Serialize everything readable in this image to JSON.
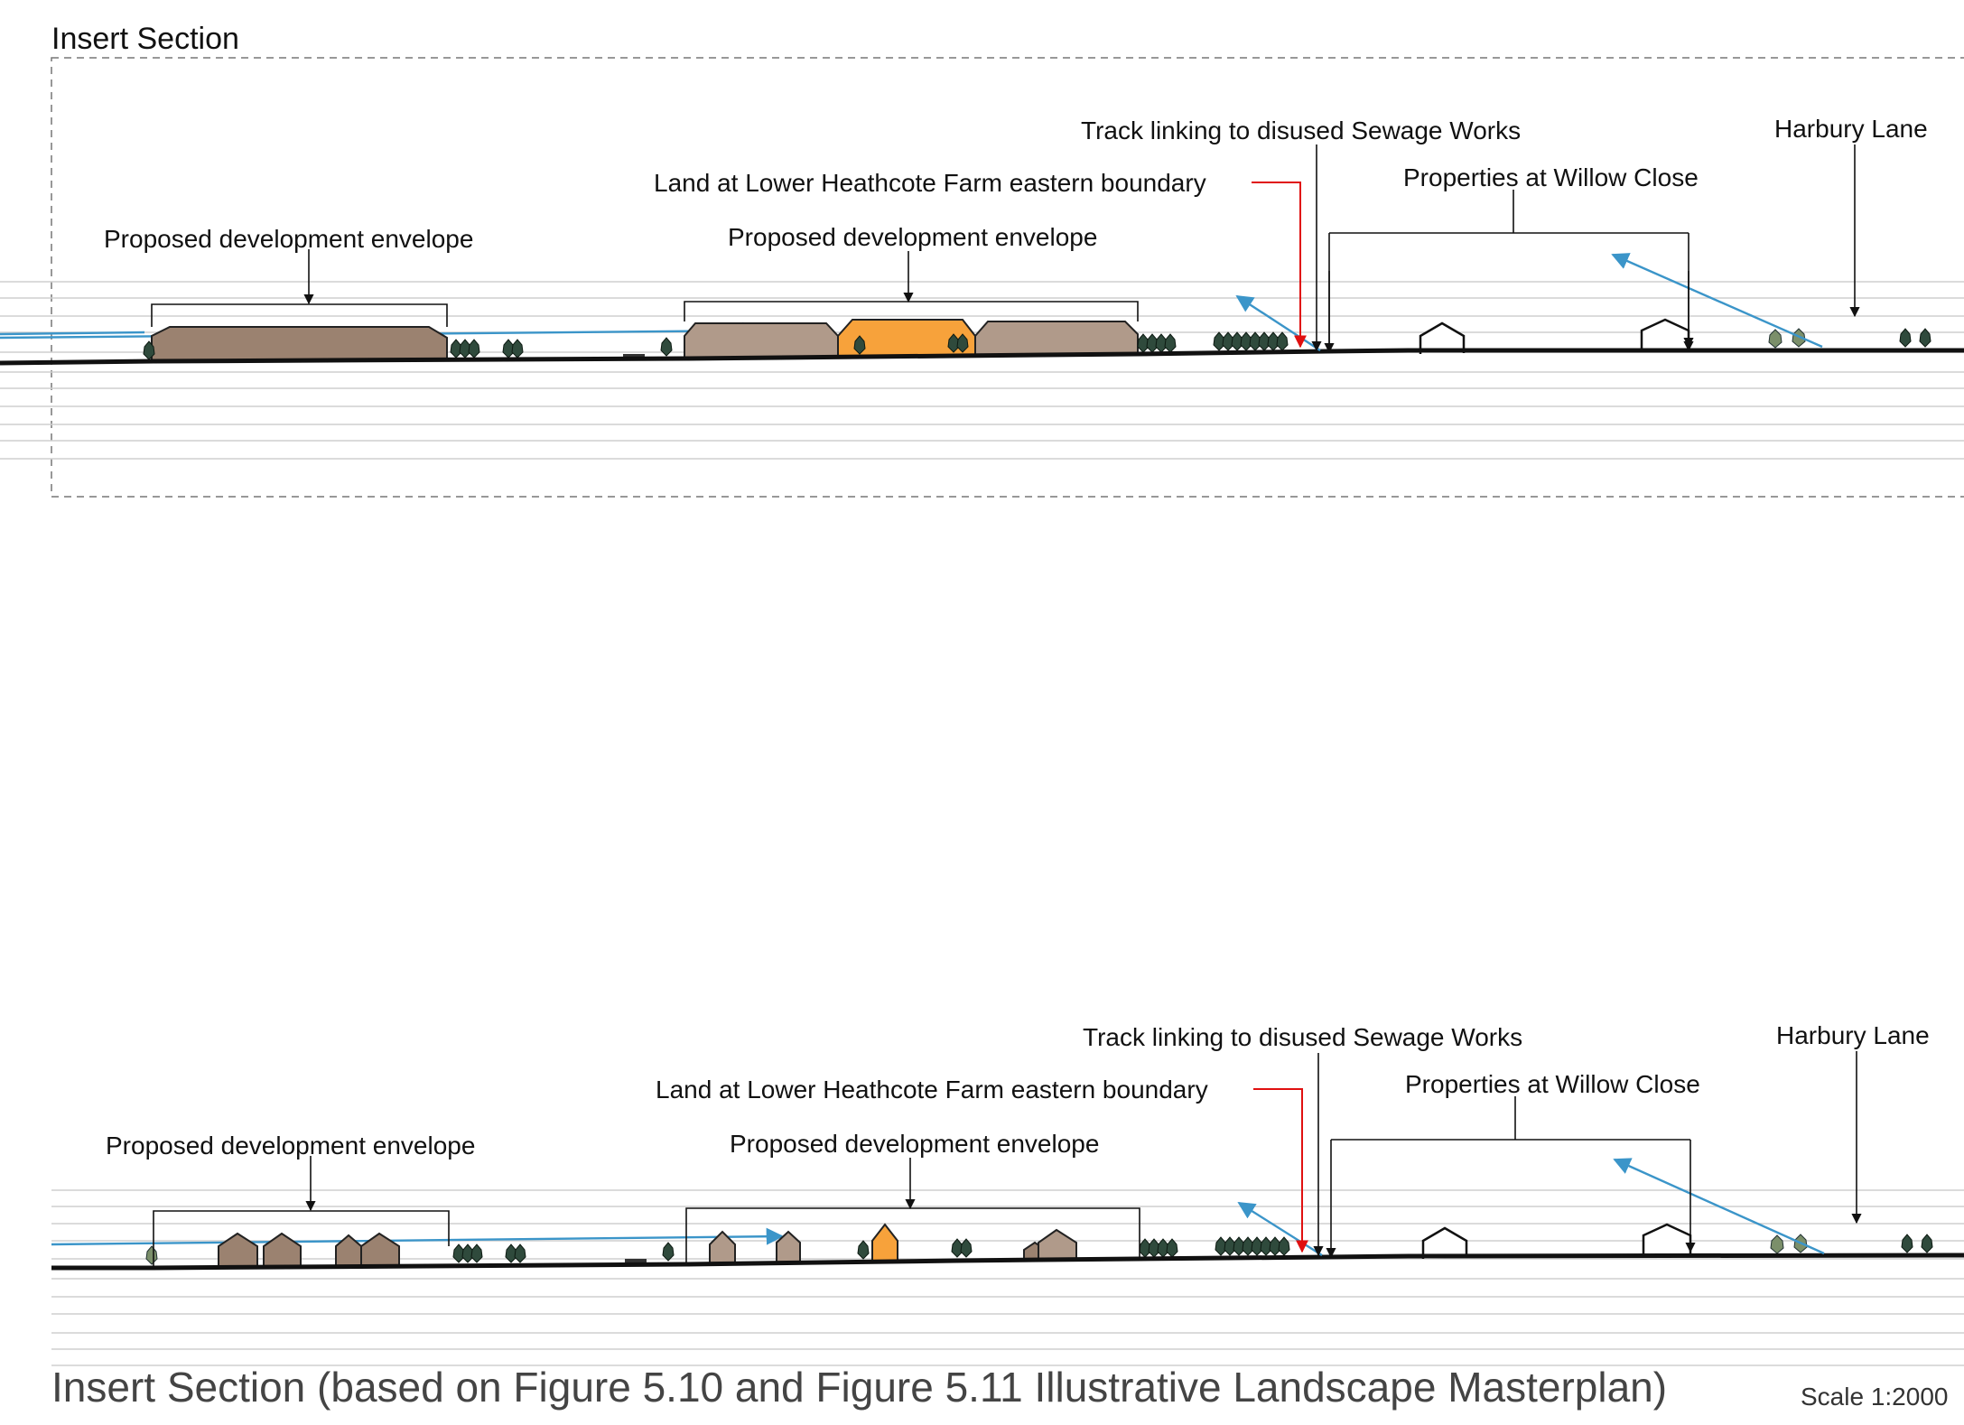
{
  "header": {
    "title": "Insert Section"
  },
  "labels": {
    "track": "Track linking to disused Sewage Works",
    "harbury": "Harbury Lane",
    "boundary": "Land at Lower Heathcote Farm eastern boundary",
    "willow": "Properties at Willow Close",
    "envelope_left": "Proposed development envelope",
    "envelope_mid": "Proposed development envelope"
  },
  "caption": {
    "text": "Insert Section (based on Figure 5.10 and Figure 5.11 Illustrative Landscape Masterplan)",
    "scale": "Scale 1:2000"
  },
  "colors": {
    "massing_dark": "#9b8270",
    "massing_light": "#b09a8a",
    "highlight": "#f7a23b",
    "sightline": "#3b95c9",
    "boundary_marker": "#e01010",
    "ground": "#111111"
  }
}
